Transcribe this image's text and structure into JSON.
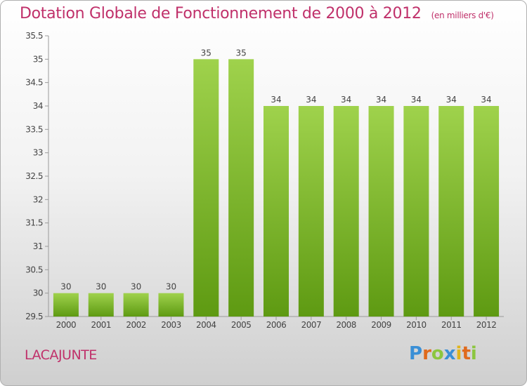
{
  "header": {
    "title": "Dotation Globale de Fonctionnement de 2000 à 2012",
    "unit": "(en milliers d'€)"
  },
  "footer": {
    "commune": "LACAJUNTE",
    "brand": {
      "letters": [
        "P",
        "r",
        "o",
        "x",
        "i",
        "t",
        "i"
      ],
      "colors": [
        "#3a8fd6",
        "#e06a1c",
        "#8cc63f",
        "#3a8fd6",
        "#e0b51c",
        "#e06a1c",
        "#8cc63f"
      ]
    }
  },
  "colors": {
    "bar_top": "#9fd24c",
    "bar_bottom": "#5e9a12",
    "title": "#c0306a"
  },
  "chart_data": {
    "type": "bar",
    "title": "Dotation Globale de Fonctionnement de 2000 à 2012",
    "categories": [
      "2000",
      "2001",
      "2002",
      "2003",
      "2004",
      "2005",
      "2006",
      "2007",
      "2008",
      "2009",
      "2010",
      "2011",
      "2012"
    ],
    "values": [
      30,
      30,
      30,
      30,
      35,
      35,
      34,
      34,
      34,
      34,
      34,
      34,
      34
    ],
    "data_labels": [
      "30",
      "30",
      "30",
      "30",
      "35",
      "35",
      "34",
      "34",
      "34",
      "34",
      "34",
      "34",
      "34"
    ],
    "ylim": [
      29.5,
      35.5
    ],
    "yticks": [
      "29.5",
      "30",
      "30.5",
      "31",
      "31.5",
      "32",
      "32.5",
      "33",
      "33.5",
      "34",
      "34.5",
      "35",
      "35.5"
    ],
    "grid": false,
    "legend": "none"
  }
}
